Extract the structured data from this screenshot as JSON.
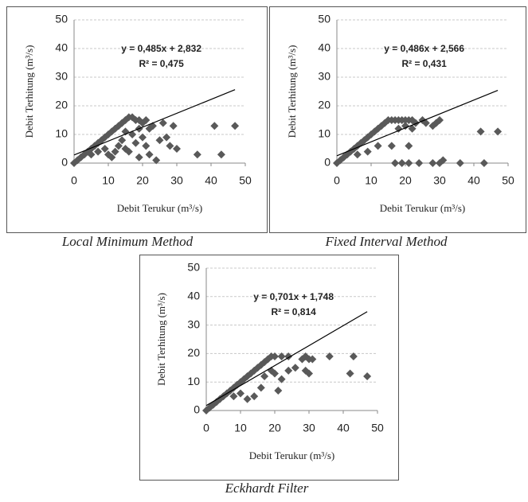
{
  "chart_data": [
    {
      "type": "scatter",
      "title": "Local Minimum Method",
      "x_label": "Debit Terukur (m³/s)",
      "y_label": "Debit Terhitung (m³/s)",
      "equation": "y = 0,485x + 2,832",
      "r_squared": "R² = 0,475",
      "trendline": {
        "slope": 0.485,
        "intercept": 2.832
      },
      "color": "#595959",
      "grid": true,
      "xlim": [
        0,
        50
      ],
      "ylim": [
        0,
        50
      ],
      "xticks": [
        0,
        10,
        20,
        30,
        40,
        50
      ],
      "yticks": [
        0,
        10,
        20,
        30,
        40,
        50
      ],
      "x": [
        0,
        1,
        2,
        3,
        4,
        5,
        6,
        7,
        8,
        9,
        10,
        11,
        12,
        13,
        14,
        15,
        16,
        17,
        18,
        19,
        20,
        21,
        22,
        5,
        7,
        9,
        10,
        11,
        12,
        13,
        14,
        15,
        16,
        17,
        18,
        19,
        20,
        21,
        22,
        23,
        24,
        25,
        26,
        27,
        28,
        29,
        30,
        36,
        41,
        43,
        47,
        19,
        15
      ],
      "y": [
        0,
        1,
        2,
        3,
        4,
        5,
        6,
        7,
        8,
        9,
        10,
        11,
        12,
        13,
        14,
        15,
        16,
        16,
        15,
        15,
        14,
        15,
        12,
        3,
        4,
        5,
        3,
        2,
        4,
        6,
        8,
        5,
        4,
        10,
        7,
        12,
        9,
        6,
        3,
        13,
        1,
        8,
        14,
        9,
        6,
        13,
        5,
        3,
        13,
        3,
        13,
        2,
        11
      ]
    },
    {
      "type": "scatter",
      "title": "Fixed Interval Method",
      "x_label": "Debit Terukur (m³/s)",
      "y_label": "Debit Terhitung (m³/s)",
      "equation": "y = 0,486x + 2,566",
      "r_squared": "R² = 0,431",
      "trendline": {
        "slope": 0.486,
        "intercept": 2.566
      },
      "color": "#595959",
      "grid": true,
      "xlim": [
        0,
        50
      ],
      "ylim": [
        0,
        50
      ],
      "xticks": [
        0,
        10,
        20,
        30,
        40,
        50
      ],
      "yticks": [
        0,
        10,
        20,
        30,
        40,
        50
      ],
      "x": [
        0,
        1,
        2,
        3,
        4,
        5,
        6,
        7,
        8,
        9,
        10,
        11,
        12,
        13,
        14,
        15,
        16,
        17,
        18,
        19,
        20,
        21,
        22,
        17,
        19,
        21,
        24,
        28,
        30,
        31,
        36,
        43,
        42,
        47,
        16,
        21,
        28,
        29,
        30,
        25,
        23,
        20,
        22,
        18,
        26,
        6,
        9,
        12
      ],
      "y": [
        0,
        1,
        2,
        3,
        4,
        5,
        6,
        7,
        8,
        9,
        10,
        11,
        12,
        13,
        14,
        15,
        15,
        15,
        15,
        15,
        15,
        15,
        15,
        0,
        0,
        0,
        0,
        0,
        0,
        1,
        0,
        0,
        11,
        11,
        6,
        6,
        13,
        14,
        15,
        15,
        14,
        13,
        12,
        12,
        14,
        3,
        4,
        6
      ]
    },
    {
      "type": "scatter",
      "title": "Eckhardt Filter",
      "x_label": "Debit Terukur (m³/s)",
      "y_label": "Debit Terhitung (m³/s)",
      "equation": "y = 0,701x + 1,748",
      "r_squared": "R² = 0,814",
      "trendline": {
        "slope": 0.701,
        "intercept": 1.748
      },
      "color": "#595959",
      "grid": true,
      "xlim": [
        0,
        50
      ],
      "ylim": [
        0,
        50
      ],
      "xticks": [
        0,
        10,
        20,
        30,
        40,
        50
      ],
      "yticks": [
        0,
        10,
        20,
        30,
        40,
        50
      ],
      "x": [
        0,
        1,
        2,
        3,
        4,
        5,
        6,
        7,
        8,
        9,
        10,
        11,
        12,
        13,
        14,
        15,
        16,
        17,
        18,
        19,
        20,
        22,
        24,
        28,
        29,
        30,
        31,
        36,
        43,
        42,
        47,
        21,
        22,
        29,
        30,
        24,
        16,
        14,
        12,
        19,
        17,
        20,
        26,
        8,
        10
      ],
      "y": [
        0,
        1,
        2,
        3,
        4,
        5,
        6,
        7,
        8,
        9,
        10,
        11,
        12,
        13,
        14,
        15,
        16,
        17,
        18,
        19,
        19,
        19,
        19,
        18,
        19,
        18,
        18,
        19,
        19,
        13,
        12,
        7,
        11,
        14,
        13,
        14,
        8,
        5,
        4,
        14,
        12,
        13,
        15,
        5,
        6
      ]
    }
  ]
}
